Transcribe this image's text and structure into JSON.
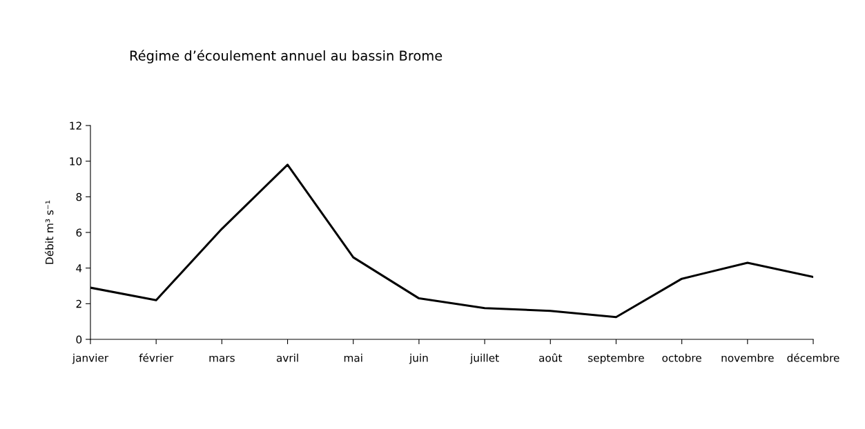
{
  "chart_data": {
    "type": "line",
    "title": "Régime d’écoulement annuel au bassin Brome",
    "ylabel": "Débit m³ s⁻¹",
    "categories": [
      "janvier",
      "février",
      "mars",
      "avril",
      "mai",
      "juin",
      "juillet",
      "août",
      "septembre",
      "octobre",
      "novembre",
      "décembre"
    ],
    "series": [
      {
        "color": "#000000",
        "values": [
          2.9,
          2.2,
          6.2,
          9.8,
          4.6,
          2.3,
          1.75,
          1.6,
          1.25,
          3.4,
          4.3,
          3.5
        ]
      }
    ],
    "ylim": [
      0,
      12
    ],
    "yticks": [
      0,
      2,
      4,
      6,
      8,
      10,
      12
    ],
    "grid": false,
    "legend": false,
    "marker": "none",
    "line_style": "solid"
  }
}
